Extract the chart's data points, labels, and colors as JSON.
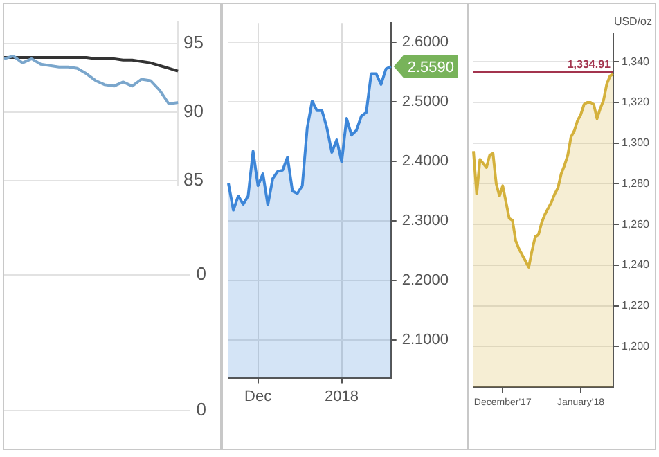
{
  "chart_data": [
    {
      "type": "line",
      "categories": [
        null,
        null,
        null,
        null,
        null,
        null,
        null,
        null,
        null,
        null,
        null,
        null,
        null,
        null,
        null,
        null,
        null,
        null,
        null,
        null
      ],
      "series": [
        {
          "color": "#7aa6cc",
          "values": [
            93.9,
            94.1,
            93.6,
            93.9,
            93.5,
            93.4,
            93.3,
            93.3,
            93.2,
            92.8,
            92.3,
            92.0,
            91.9,
            92.2,
            91.9,
            92.4,
            92.3,
            91.6,
            90.6,
            90.7
          ]
        },
        {
          "color": "#333333",
          "values": [
            94.0,
            94.0,
            94.0,
            94.0,
            94.0,
            94.0,
            94.0,
            94.0,
            94.0,
            94.0,
            93.9,
            93.9,
            93.9,
            93.8,
            93.8,
            93.7,
            93.6,
            93.4,
            93.2,
            93.0
          ]
        }
      ],
      "ylim": [
        84.6,
        96.6
      ],
      "yticks": [
        85,
        90,
        95
      ],
      "grid": "y",
      "tick_labels": "y"
    },
    {
      "type": "other",
      "annotations": [
        "0"
      ]
    },
    {
      "type": "other",
      "annotations": [
        "0"
      ]
    },
    {
      "type": "area",
      "categories": [
        null,
        null,
        null,
        null,
        null,
        null,
        "Dec",
        null,
        null,
        null,
        null,
        null,
        null,
        null,
        null,
        null,
        null,
        null,
        null,
        null,
        null,
        null,
        null,
        "2018",
        null,
        null,
        null,
        null,
        null,
        null,
        null,
        null,
        null,
        null
      ],
      "series": [
        {
          "color": "#3d86d8",
          "values": [
            2.363,
            2.318,
            2.342,
            2.328,
            2.342,
            2.417,
            2.359,
            2.379,
            2.327,
            2.371,
            2.383,
            2.385,
            2.407,
            2.35,
            2.346,
            2.359,
            2.456,
            2.501,
            2.485,
            2.485,
            2.456,
            2.415,
            2.436,
            2.399,
            2.472,
            2.444,
            2.452,
            2.476,
            2.482,
            2.547,
            2.547,
            2.529,
            2.555,
            2.559
          ]
        }
      ],
      "ylim": [
        2.037,
        2.632
      ],
      "yticks": [
        {
          "value": 2.1,
          "label": "2.1000"
        },
        {
          "value": 2.2,
          "label": "2.2000"
        },
        {
          "value": 2.3,
          "label": "2.3000"
        },
        {
          "value": 2.4,
          "label": "2.4000"
        },
        {
          "value": 2.5,
          "label": "2.5000"
        },
        {
          "value": 2.6,
          "label": "2.6000"
        }
      ],
      "grid": true,
      "annotations": [
        "2.5590"
      ]
    },
    {
      "type": "area",
      "ylabel": "USD/oz",
      "categories": [
        null,
        null,
        null,
        null,
        null,
        null,
        null,
        null,
        null,
        "December'17",
        null,
        null,
        null,
        null,
        null,
        null,
        null,
        null,
        null,
        null,
        null,
        null,
        null,
        null,
        null,
        null,
        null,
        null,
        null,
        null,
        null,
        null,
        null,
        "January'18",
        null,
        null,
        null,
        null,
        null,
        null,
        null,
        null,
        null,
        null
      ],
      "series": [
        {
          "color": "#d4b13c",
          "values": [
            1296,
            1275,
            1292,
            1290,
            1288,
            1294,
            1295,
            1280,
            1274,
            1279,
            1271,
            1263,
            1262,
            1252,
            1248,
            1245,
            1242,
            1239,
            1247,
            1254,
            1255,
            1261,
            1265,
            1268,
            1271,
            1275,
            1278,
            1285,
            1289,
            1294,
            1303,
            1306,
            1311,
            1314,
            1319,
            1320,
            1320,
            1319,
            1312,
            1317,
            1321,
            1329,
            1333,
            1334
          ]
        }
      ],
      "ylim": [
        1180,
        1354
      ],
      "yticks": [
        {
          "value": 1200,
          "label": "1,200"
        },
        {
          "value": 1220,
          "label": "1,220"
        },
        {
          "value": 1240,
          "label": "1,240"
        },
        {
          "value": 1260,
          "label": "1,260"
        },
        {
          "value": 1280,
          "label": "1,280"
        },
        {
          "value": 1300,
          "label": "1,300"
        },
        {
          "value": 1320,
          "label": "1,320"
        },
        {
          "value": 1340,
          "label": "1,340"
        }
      ],
      "grid": "y",
      "ref_lines": [
        {
          "axis": "y",
          "value": 1334.91,
          "label": "1,334.91",
          "color": "#a3344e"
        }
      ]
    }
  ]
}
